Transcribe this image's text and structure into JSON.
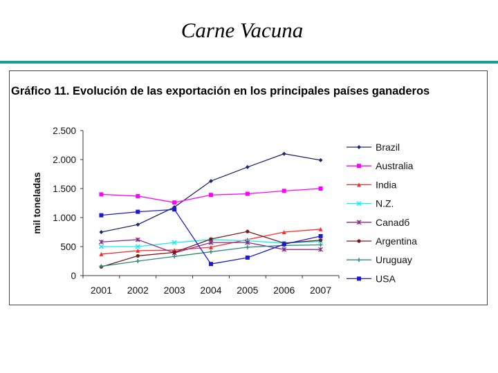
{
  "slide": {
    "title": "Carne Vacuna"
  },
  "colors": {
    "rule": "#1a9e8f"
  },
  "chart_data": {
    "type": "line",
    "title": "Gráfico 11. Evolución de las exportación en los principales países ganaderos",
    "xlabel": "",
    "ylabel": "mil toneladas",
    "x": [
      "2001",
      "2002",
      "2003",
      "2004",
      "2005",
      "2006",
      "2007"
    ],
    "ylim": [
      0,
      2500
    ],
    "yticks": [
      0,
      500,
      1000,
      1500,
      2000,
      2500
    ],
    "ytick_labels": [
      "0",
      "500",
      "1.000",
      "1.500",
      "2.000",
      "2.500"
    ],
    "grid": false,
    "legend": "right",
    "series": [
      {
        "name": "Brazil",
        "color": "#1f2a6b",
        "marker": "diamond",
        "values": [
          750,
          880,
          1180,
          1630,
          1870,
          2100,
          1990
        ]
      },
      {
        "name": "Australia",
        "color": "#ff00ff",
        "marker": "square",
        "values": [
          1400,
          1370,
          1260,
          1390,
          1410,
          1460,
          1500
        ]
      },
      {
        "name": "India",
        "color": "#ff2a2a",
        "marker": "triangle",
        "values": [
          370,
          430,
          440,
          490,
          620,
          750,
          800
        ]
      },
      {
        "name": "N.Z.",
        "color": "#11eeee",
        "marker": "x",
        "values": [
          500,
          500,
          570,
          620,
          600,
          560,
          590
        ]
      },
      {
        "name": "Canadб",
        "color": "#8a2a8a",
        "marker": "star",
        "values": [
          580,
          620,
          390,
          570,
          570,
          450,
          450
        ]
      },
      {
        "name": "Argentina",
        "color": "#7a1a1a",
        "marker": "circle",
        "values": [
          150,
          340,
          400,
          630,
          760,
          560,
          610
        ]
      },
      {
        "name": "Uruguay",
        "color": "#2a8a7a",
        "marker": "plus",
        "values": [
          160,
          250,
          330,
          410,
          490,
          520,
          530
        ]
      },
      {
        "name": "USA",
        "color": "#1a1acc",
        "marker": "square",
        "values": [
          1040,
          1100,
          1140,
          200,
          310,
          540,
          680
        ]
      }
    ]
  }
}
